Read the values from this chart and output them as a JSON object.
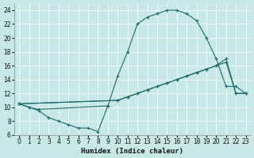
{
  "xlabel": "Humidex (Indice chaleur)",
  "bg_color": "#c8e8e8",
  "line_color": "#1a6b6b",
  "grid_color": "#ffffff",
  "xlim": [
    -0.5,
    23.5
  ],
  "ylim": [
    6,
    25
  ],
  "yticks": [
    6,
    8,
    10,
    12,
    14,
    16,
    18,
    20,
    22,
    24
  ],
  "xticks": [
    0,
    1,
    2,
    3,
    4,
    5,
    6,
    7,
    8,
    9,
    10,
    11,
    12,
    13,
    14,
    15,
    16,
    17,
    18,
    19,
    20,
    21,
    22,
    23
  ],
  "line_top_x": [
    0,
    1,
    2,
    9,
    10,
    11,
    12,
    13,
    14,
    15,
    16,
    17,
    18,
    19,
    20,
    21,
    22,
    23
  ],
  "line_top_y": [
    10.5,
    10.0,
    9.7,
    10.2,
    14.5,
    18.0,
    22.0,
    23.0,
    23.5,
    24.0,
    24.0,
    23.5,
    22.5,
    20.0,
    17.0,
    13.0,
    13.0,
    12.0
  ],
  "line_mid_x": [
    0,
    10,
    11,
    12,
    13,
    14,
    15,
    16,
    17,
    18,
    19,
    20,
    21,
    22,
    23
  ],
  "line_mid_y": [
    10.5,
    11.0,
    11.5,
    12.0,
    12.5,
    13.0,
    13.5,
    14.0,
    14.5,
    15.0,
    15.5,
    16.0,
    17.0,
    12.0,
    12.0
  ],
  "line_bot_x": [
    0,
    1,
    2,
    3,
    4,
    5,
    6,
    7,
    8,
    9
  ],
  "line_bot_y": [
    10.5,
    10.0,
    9.5,
    8.5,
    8.0,
    7.5,
    7.0,
    7.0,
    6.5,
    10.2
  ],
  "line_lin_x": [
    0,
    10,
    11,
    12,
    13,
    14,
    15,
    16,
    17,
    18,
    19,
    20,
    21,
    22,
    23
  ],
  "line_lin_y": [
    10.5,
    11.0,
    11.5,
    12.0,
    12.5,
    13.0,
    13.5,
    14.0,
    14.5,
    15.0,
    15.5,
    16.0,
    16.5,
    12.0,
    12.0
  ]
}
